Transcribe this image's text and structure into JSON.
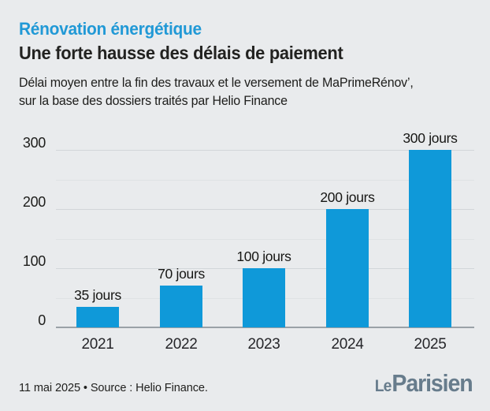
{
  "header": {
    "kicker": "Rénovation énergétique",
    "title": "Une forte hausse des délais de paiement",
    "subtitle_line1": "Délai moyen entre la fin des travaux et le versement de MaPrimeRénov’,",
    "subtitle_line2": "sur la base des dossiers traités par Helio Finance"
  },
  "chart_data": {
    "type": "bar",
    "title": "Délai moyen entre la fin des travaux et le versement de MaPrimeRénov’, sur la base des dossiers traités par Helio Finance",
    "categories": [
      "2021",
      "2022",
      "2023",
      "2024",
      "2025"
    ],
    "values": [
      35,
      70,
      100,
      200,
      300
    ],
    "value_labels": [
      "35 jours",
      "70 jours",
      "100 jours",
      "200 jours",
      "300 jours"
    ],
    "unit": "jours",
    "xlabel": "",
    "ylabel": "",
    "ylim": [
      0,
      300
    ],
    "yticks": [
      0,
      100,
      200,
      300
    ],
    "minor_gridlines": [
      50,
      150,
      250
    ],
    "grid": true,
    "legend": false,
    "bar_color": "#0f99d9"
  },
  "footer": {
    "source": "11 mai 2025 • Source : Helio Finance.",
    "logo_le": "Le",
    "logo_parisien": "Parisien"
  },
  "colors": {
    "background": "#e9ebed",
    "accent_blue": "#2199d6",
    "bar_blue": "#0f99d9",
    "text_dark": "#1d1d1b",
    "logo_slate": "#677c8c",
    "gridline_major": "#d2d6d9",
    "gridline_minor": "#dfe2e4",
    "axis_line": "#9aa1a7"
  }
}
